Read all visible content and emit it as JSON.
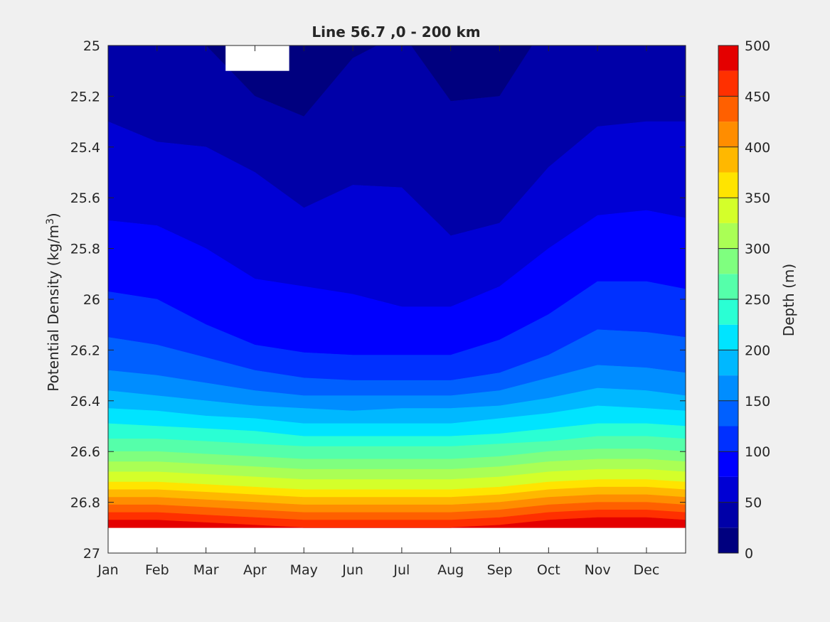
{
  "chart_data": {
    "type": "heatmap",
    "subtype": "filled-contour",
    "title": "Line 56.7 ,0 - 200 km",
    "xlabel": "",
    "ylabel": "Potential Density (kg/m",
    "ylabel_sup": "3",
    "ylabel_end": ")",
    "x_ticks": [
      "Jan",
      "Feb",
      "Mar",
      "Apr",
      "May",
      "Jun",
      "Jul",
      "Aug",
      "Sep",
      "Oct",
      "Nov",
      "Dec"
    ],
    "xlim_months": [
      0,
      11.8
    ],
    "ylim": [
      25,
      27
    ],
    "y_direction": "reversed",
    "y_ticks": [
      "25",
      "25.2",
      "25.4",
      "25.6",
      "25.8",
      "26",
      "26.2",
      "26.4",
      "26.6",
      "26.8",
      "27"
    ],
    "colorbar": {
      "label": "Depth (m)",
      "range": [
        0,
        500
      ],
      "tick_labels": [
        "0",
        "50",
        "100",
        "150",
        "200",
        "250",
        "300",
        "350",
        "400",
        "450",
        "500"
      ],
      "level_step": 25,
      "colors": [
        "#00007f",
        "#0000a8",
        "#0000d4",
        "#0000ff",
        "#0030ff",
        "#0060ff",
        "#008dff",
        "#00b8ff",
        "#00e4ff",
        "#2affd4",
        "#55ffaa",
        "#7fff7f",
        "#aaff55",
        "#d4ff2a",
        "#ffe400",
        "#ffb800",
        "#ff8d00",
        "#ff6000",
        "#ff3000",
        "#e40000"
      ]
    },
    "contours": {
      "month": [
        0,
        1,
        2,
        3,
        4,
        5,
        6,
        7,
        8,
        9,
        10,
        11,
        11.8
      ],
      "lines": [
        {
          "depth": 25,
          "density": [
            24.9,
            24.9,
            25.0,
            25.2,
            25.28,
            25.05,
            24.95,
            25.22,
            25.2,
            24.9,
            24.9,
            24.9,
            24.9
          ]
        },
        {
          "depth": 50,
          "density": [
            25.3,
            25.38,
            25.4,
            25.5,
            25.64,
            25.55,
            25.56,
            25.75,
            25.7,
            25.48,
            25.32,
            25.3,
            25.3
          ]
        },
        {
          "depth": 75,
          "density": [
            25.69,
            25.71,
            25.8,
            25.92,
            25.95,
            25.98,
            26.03,
            26.03,
            25.95,
            25.8,
            25.67,
            25.65,
            25.68
          ]
        },
        {
          "depth": 100,
          "density": [
            25.97,
            26.0,
            26.1,
            26.18,
            26.21,
            26.22,
            26.22,
            26.22,
            26.16,
            26.06,
            25.93,
            25.93,
            25.96
          ]
        },
        {
          "depth": 125,
          "density": [
            26.15,
            26.18,
            26.23,
            26.28,
            26.31,
            26.32,
            26.32,
            26.32,
            26.29,
            26.22,
            26.12,
            26.13,
            26.15
          ]
        },
        {
          "depth": 150,
          "density": [
            26.28,
            26.3,
            26.33,
            26.36,
            26.38,
            26.38,
            26.38,
            26.38,
            26.36,
            26.31,
            26.26,
            26.27,
            26.29
          ]
        },
        {
          "depth": 175,
          "density": [
            26.36,
            26.38,
            26.4,
            26.42,
            26.43,
            26.44,
            26.43,
            26.43,
            26.42,
            26.39,
            26.35,
            26.36,
            26.38
          ]
        },
        {
          "depth": 200,
          "density": [
            26.43,
            26.44,
            26.46,
            26.47,
            26.49,
            26.49,
            26.49,
            26.49,
            26.47,
            26.45,
            26.42,
            26.43,
            26.44
          ]
        },
        {
          "depth": 225,
          "density": [
            26.49,
            26.5,
            26.51,
            26.52,
            26.54,
            26.54,
            26.54,
            26.54,
            26.53,
            26.51,
            26.49,
            26.49,
            26.5
          ]
        },
        {
          "depth": 250,
          "density": [
            26.55,
            26.55,
            26.56,
            26.57,
            26.58,
            26.58,
            26.58,
            26.58,
            26.57,
            26.56,
            26.54,
            26.54,
            26.55
          ]
        },
        {
          "depth": 275,
          "density": [
            26.6,
            26.6,
            26.61,
            26.62,
            26.63,
            26.63,
            26.63,
            26.63,
            26.62,
            26.6,
            26.59,
            26.59,
            26.6
          ]
        },
        {
          "depth": 300,
          "density": [
            26.64,
            26.64,
            26.65,
            26.66,
            26.67,
            26.67,
            26.67,
            26.67,
            26.66,
            26.64,
            26.63,
            26.63,
            26.64
          ]
        },
        {
          "depth": 325,
          "density": [
            26.68,
            26.68,
            26.69,
            26.7,
            26.71,
            26.71,
            26.71,
            26.71,
            26.7,
            26.68,
            26.67,
            26.67,
            26.68
          ]
        },
        {
          "depth": 350,
          "density": [
            26.72,
            26.72,
            26.73,
            26.74,
            26.75,
            26.75,
            26.75,
            26.75,
            26.74,
            26.72,
            26.71,
            26.71,
            26.72
          ]
        },
        {
          "depth": 375,
          "density": [
            26.75,
            26.75,
            26.76,
            26.77,
            26.78,
            26.78,
            26.78,
            26.78,
            26.77,
            26.75,
            26.74,
            26.74,
            26.75
          ]
        },
        {
          "depth": 400,
          "density": [
            26.78,
            26.78,
            26.79,
            26.8,
            26.81,
            26.81,
            26.81,
            26.81,
            26.8,
            26.78,
            26.77,
            26.77,
            26.78
          ]
        },
        {
          "depth": 425,
          "density": [
            26.81,
            26.81,
            26.82,
            26.83,
            26.84,
            26.84,
            26.84,
            26.84,
            26.83,
            26.81,
            26.8,
            26.8,
            26.81
          ]
        },
        {
          "depth": 450,
          "density": [
            26.84,
            26.84,
            26.85,
            26.86,
            26.87,
            26.87,
            26.87,
            26.87,
            26.86,
            26.84,
            26.83,
            26.83,
            26.84
          ]
        },
        {
          "depth": 475,
          "density": [
            26.87,
            26.87,
            26.88,
            26.89,
            26.9,
            26.9,
            26.9,
            26.9,
            26.89,
            26.87,
            26.86,
            26.86,
            26.87
          ]
        }
      ],
      "deepest_level_color": "#e40000",
      "no_data_below_density": 26.9,
      "no_data_top_region": {
        "month": [
          2.4,
          3.7
        ],
        "density": [
          25,
          25.1
        ]
      }
    },
    "grid": false,
    "legend": "colorbar-right"
  }
}
